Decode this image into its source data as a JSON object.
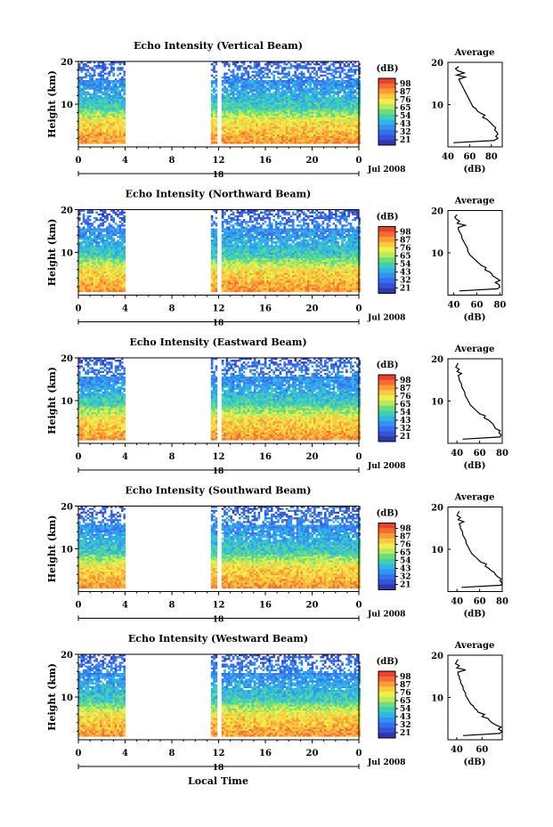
{
  "chart_data": [
    {
      "type": "heatmap",
      "title": "Echo Intensity (Vertical Beam)",
      "ylabel": "Height (km)",
      "yticks": [
        "20",
        "10"
      ],
      "ylim": [
        0,
        20
      ],
      "xticks": [
        "0",
        "4",
        "8",
        "12",
        "16",
        "20",
        "0"
      ],
      "xlim": [
        0,
        24
      ],
      "xsub": "18",
      "date": "Jul 2008",
      "colorbar": {
        "unit": "(dB)",
        "ticks": [
          "98",
          "87",
          "76",
          "65",
          "54",
          "43",
          "32",
          "21"
        ]
      },
      "data_gaps_hours": [
        [
          4,
          11.2
        ],
        [
          11.8,
          12.2
        ]
      ],
      "average": {
        "title": "Average",
        "xlabel": "(dB)",
        "xticks": [
          "40",
          "60",
          "80"
        ],
        "xlim": [
          40,
          90
        ],
        "yticks": [
          "20",
          "10"
        ],
        "profile_height_km": [
          1,
          1.5,
          2,
          2.5,
          3,
          3.5,
          4,
          4.5,
          5,
          5.5,
          6,
          6.5,
          7,
          7.5,
          8,
          8.5,
          9,
          9.5,
          10,
          10.5,
          11,
          11.5,
          12,
          12.5,
          13,
          13.5,
          14,
          14.5,
          15,
          15.5,
          16,
          16.5,
          17,
          17.5,
          18,
          18.5,
          19
        ],
        "profile_db": [
          45,
          82,
          86,
          84,
          86,
          85,
          83,
          84,
          82,
          80,
          78,
          76,
          72,
          74,
          70,
          67,
          66,
          63,
          62,
          61,
          60,
          59,
          58,
          57,
          56,
          55,
          54,
          53,
          52,
          51,
          50,
          56,
          48,
          55,
          49,
          47,
          50
        ]
      }
    },
    {
      "type": "heatmap",
      "title": "Echo Intensity (Northward Beam)",
      "ylabel": "Height (km)",
      "yticks": [
        "20",
        "10"
      ],
      "ylim": [
        0,
        20
      ],
      "xticks": [
        "0",
        "4",
        "8",
        "12",
        "16",
        "20",
        "0"
      ],
      "xlim": [
        0,
        24
      ],
      "xsub": "18",
      "date": "Jul 2008",
      "colorbar": {
        "unit": "(dB)",
        "ticks": [
          "98",
          "87",
          "76",
          "65",
          "54",
          "43",
          "32",
          "21"
        ]
      },
      "data_gaps_hours": [
        [
          4,
          11.2
        ],
        [
          11.8,
          12.2
        ]
      ],
      "average": {
        "title": "Average",
        "xlabel": "(dB)",
        "xticks": [
          "40",
          "60",
          "80"
        ],
        "xlim": [
          35,
          82
        ],
        "yticks": [
          "20",
          "10"
        ],
        "profile_height_km": [
          1,
          1.5,
          2,
          2.5,
          3,
          3.5,
          4,
          4.5,
          5,
          5.5,
          6,
          6.5,
          7,
          7.5,
          8,
          8.5,
          9,
          9.5,
          10,
          10.5,
          11,
          11.5,
          12,
          12.5,
          13,
          13.5,
          14,
          14.5,
          15,
          15.5,
          16,
          16.5,
          17,
          17.5,
          18,
          18.5,
          19
        ],
        "profile_db": [
          45,
          78,
          80,
          79,
          76,
          80,
          77,
          74,
          73,
          71,
          67,
          68,
          64,
          62,
          60,
          58,
          56,
          54,
          53,
          52,
          52,
          51,
          50,
          49,
          48,
          47,
          47,
          46,
          45,
          44,
          44,
          50,
          43,
          45,
          42,
          41,
          43
        ]
      }
    },
    {
      "type": "heatmap",
      "title": "Echo Intensity (Eastward Beam)",
      "ylabel": "Height (km)",
      "yticks": [
        "20",
        "10"
      ],
      "ylim": [
        0,
        20
      ],
      "xticks": [
        "0",
        "4",
        "8",
        "12",
        "16",
        "20",
        "0"
      ],
      "xlim": [
        0,
        24
      ],
      "xsub": "18",
      "date": "Jul 2008",
      "colorbar": {
        "unit": "(dB)",
        "ticks": [
          "98",
          "87",
          "76",
          "65",
          "54",
          "43",
          "32",
          "21"
        ]
      },
      "data_gaps_hours": [
        [
          4,
          11.2
        ],
        [
          11.8,
          12.2
        ]
      ],
      "average": {
        "title": "Average",
        "xlabel": "(dB)",
        "xticks": [
          "40",
          "60",
          "80"
        ],
        "xlim": [
          32,
          80
        ],
        "yticks": [
          "20",
          "10"
        ],
        "profile_height_km": [
          1,
          1.5,
          2,
          2.5,
          3,
          3.5,
          4,
          4.5,
          5,
          5.5,
          6,
          6.5,
          7,
          7.5,
          8,
          8.5,
          9,
          9.5,
          10,
          10.5,
          11,
          11.5,
          12,
          12.5,
          13,
          13.5,
          14,
          14.5,
          15,
          15.5,
          16,
          16.5,
          17,
          17.5,
          18,
          18.5,
          19
        ],
        "profile_db": [
          45,
          78,
          79,
          77,
          78,
          74,
          73,
          72,
          70,
          68,
          64,
          65,
          60,
          58,
          56,
          54,
          52,
          51,
          50,
          49,
          48,
          47,
          47,
          46,
          45,
          44,
          44,
          43,
          42,
          42,
          41,
          44,
          40,
          42,
          39,
          40,
          41
        ]
      }
    },
    {
      "type": "heatmap",
      "title": "Echo Intensity (Southward Beam)",
      "ylabel": "Height (km)",
      "yticks": [
        "20",
        "10"
      ],
      "ylim": [
        0,
        20
      ],
      "xticks": [
        "0",
        "4",
        "8",
        "12",
        "16",
        "20",
        "0"
      ],
      "xlim": [
        0,
        24
      ],
      "xsub": "18",
      "date": "Jul 2008",
      "colorbar": {
        "unit": "(dB)",
        "ticks": [
          "98",
          "87",
          "76",
          "65",
          "54",
          "43",
          "32",
          "21"
        ]
      },
      "data_gaps_hours": [
        [
          4,
          11.2
        ],
        [
          11.8,
          12.2
        ]
      ],
      "average": {
        "title": "Average",
        "xlabel": "(dB)",
        "xticks": [
          "40",
          "60",
          "80"
        ],
        "xlim": [
          32,
          80
        ],
        "yticks": [
          "20",
          "10"
        ],
        "profile_height_km": [
          1,
          1.5,
          2,
          2.5,
          3,
          3.5,
          4,
          4.5,
          5,
          5.5,
          6,
          6.5,
          7,
          7.5,
          8,
          8.5,
          9,
          9.5,
          10,
          10.5,
          11,
          11.5,
          12,
          12.5,
          13,
          13.5,
          14,
          14.5,
          15,
          15.5,
          16,
          16.5,
          17,
          17.5,
          18,
          18.5,
          19
        ],
        "profile_db": [
          44,
          79,
          80,
          78,
          79,
          76,
          74,
          73,
          70,
          68,
          65,
          66,
          61,
          59,
          57,
          55,
          53,
          52,
          51,
          50,
          49,
          48,
          48,
          47,
          46,
          45,
          45,
          44,
          43,
          43,
          42,
          46,
          41,
          43,
          40,
          41,
          42
        ]
      }
    },
    {
      "type": "heatmap",
      "title": "Echo Intensity (Westward Beam)",
      "ylabel": "Height (km)",
      "yticks": [
        "20",
        "10"
      ],
      "ylim": [
        0,
        20
      ],
      "xticks": [
        "0",
        "4",
        "8",
        "12",
        "16",
        "20",
        "0"
      ],
      "xlim": [
        0,
        24
      ],
      "xsub": "18",
      "date": "Jul 2008",
      "xlabel": "Local Time",
      "colorbar": {
        "unit": "(dB)",
        "ticks": [
          "98",
          "87",
          "76",
          "65",
          "54",
          "43",
          "32",
          "21"
        ]
      },
      "data_gaps_hours": [
        [
          4,
          11.2
        ],
        [
          11.8,
          12.2
        ]
      ],
      "average": {
        "title": "Average",
        "xlabel": "(dB)",
        "xticks": [
          "40",
          "60"
        ],
        "xlim": [
          33,
          76
        ],
        "yticks": [
          "20",
          "10"
        ],
        "profile_height_km": [
          1,
          1.5,
          2,
          2.5,
          3,
          3.5,
          4,
          4.5,
          5,
          5.5,
          6,
          6.5,
          7,
          7.5,
          8,
          8.5,
          9,
          9.5,
          10,
          10.5,
          11,
          11.5,
          12,
          12.5,
          13,
          13.5,
          14,
          14.5,
          15,
          15.5,
          16,
          16.5,
          17,
          17.5,
          18,
          18.5,
          19
        ],
        "profile_db": [
          45,
          74,
          76,
          73,
          75,
          71,
          68,
          66,
          65,
          60,
          62,
          57,
          56,
          54,
          53,
          51,
          50,
          49,
          48,
          47,
          47,
          46,
          45,
          45,
          44,
          43,
          43,
          42,
          42,
          41,
          41,
          47,
          40,
          42,
          39,
          40,
          41
        ]
      }
    }
  ]
}
